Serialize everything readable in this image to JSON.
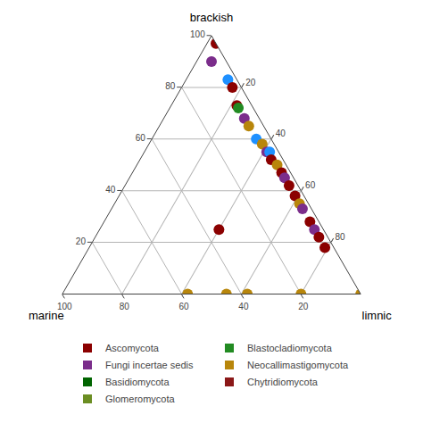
{
  "chart_data": {
    "type": "ternary",
    "axes": [
      {
        "label": "brackish",
        "ticks": [
          20,
          40,
          60,
          80,
          100
        ]
      },
      {
        "label": "marine",
        "ticks": [
          20,
          40,
          60,
          80,
          100
        ]
      },
      {
        "label": "limnic",
        "ticks": [
          20,
          40,
          60,
          80
        ]
      }
    ],
    "grid": true,
    "series": [
      {
        "name": "Ascomycota",
        "color": "#8B0000"
      },
      {
        "name": "Blastocladiomycota",
        "color": "#228B22"
      },
      {
        "name": "Fungi incertae sedis",
        "color": "#7B2D8B"
      },
      {
        "name": "Neocallimastigomycota",
        "color": "#B8860B"
      },
      {
        "name": "Basidiomycota",
        "color": "#006400"
      },
      {
        "name": "Chytridiomycota",
        "color": "#8B1818"
      },
      {
        "name": "Glomeromycota",
        "color": "#6B8E23"
      }
    ],
    "points": [
      {
        "brackish": 97,
        "limnic": 3,
        "marine": 0,
        "color": "#8B0000"
      },
      {
        "brackish": 90,
        "limnic": 5,
        "marine": 5,
        "color": "#7B2D8B"
      },
      {
        "brackish": 83,
        "limnic": 14,
        "marine": 3,
        "color": "#1E90FF"
      },
      {
        "brackish": 80,
        "limnic": 17,
        "marine": 3,
        "color": "#8B0000"
      },
      {
        "brackish": 73,
        "limnic": 22,
        "marine": 5,
        "color": "#8B0000"
      },
      {
        "brackish": 72,
        "limnic": 23,
        "marine": 5,
        "color": "#228B22"
      },
      {
        "brackish": 68,
        "limnic": 27,
        "marine": 5,
        "color": "#7B2D8B"
      },
      {
        "brackish": 65,
        "limnic": 30,
        "marine": 5,
        "color": "#B8860B"
      },
      {
        "brackish": 60,
        "limnic": 35,
        "marine": 5,
        "color": "#1E90FF"
      },
      {
        "brackish": 58,
        "limnic": 38,
        "marine": 4,
        "color": "#B8860B"
      },
      {
        "brackish": 55,
        "limnic": 41,
        "marine": 4,
        "color": "#7B2D8B"
      },
      {
        "brackish": 55,
        "limnic": 42,
        "marine": 3,
        "color": "#1E90FF"
      },
      {
        "brackish": 52,
        "limnic": 44,
        "marine": 4,
        "color": "#8B0000"
      },
      {
        "brackish": 50,
        "limnic": 47,
        "marine": 3,
        "color": "#B8860B"
      },
      {
        "brackish": 47,
        "limnic": 50,
        "marine": 3,
        "color": "#8B0000"
      },
      {
        "brackish": 45,
        "limnic": 52,
        "marine": 3,
        "color": "#7B2D8B"
      },
      {
        "brackish": 42,
        "limnic": 55,
        "marine": 3,
        "color": "#8B0000"
      },
      {
        "brackish": 38,
        "limnic": 59,
        "marine": 3,
        "color": "#8B0000"
      },
      {
        "brackish": 35,
        "limnic": 62,
        "marine": 3,
        "color": "#B8860B"
      },
      {
        "brackish": 33,
        "limnic": 64,
        "marine": 3,
        "color": "#7B2D8B"
      },
      {
        "brackish": 28,
        "limnic": 69,
        "marine": 3,
        "color": "#8B0000"
      },
      {
        "brackish": 25,
        "limnic": 72,
        "marine": 3,
        "color": "#7B2D8B"
      },
      {
        "brackish": 22,
        "limnic": 75,
        "marine": 3,
        "color": "#8B0000"
      },
      {
        "brackish": 18,
        "limnic": 79,
        "marine": 3,
        "color": "#8B0000"
      },
      {
        "brackish": 25,
        "limnic": 40,
        "marine": 35,
        "color": "#8B0000"
      },
      {
        "brackish": 0,
        "limnic": 42,
        "marine": 58,
        "color": "#B8860B"
      },
      {
        "brackish": 0,
        "limnic": 55,
        "marine": 45,
        "color": "#B8860B"
      },
      {
        "brackish": 0,
        "limnic": 62,
        "marine": 38,
        "color": "#B8860B"
      },
      {
        "brackish": 0,
        "limnic": 80,
        "marine": 20,
        "color": "#B8860B"
      },
      {
        "brackish": 0,
        "limnic": 100,
        "marine": 0,
        "color": "#B8860B"
      }
    ]
  }
}
